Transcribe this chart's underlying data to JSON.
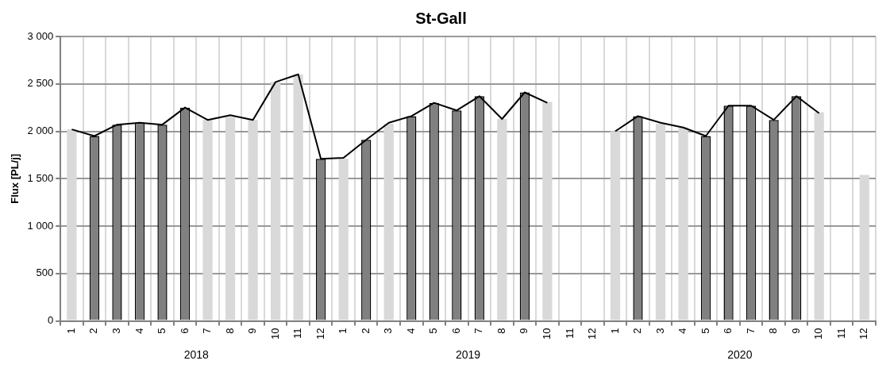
{
  "chart_data": {
    "type": "bar",
    "title": "St-Gall",
    "ylabel": "Flux [PL/j]",
    "categories": [
      "1",
      "2",
      "3",
      "4",
      "5",
      "6",
      "7",
      "8",
      "9",
      "10",
      "11",
      "12",
      "1",
      "2",
      "3",
      "4",
      "5",
      "6",
      "7",
      "8",
      "9",
      "10",
      "11",
      "12",
      "1",
      "2",
      "3",
      "4",
      "5",
      "6",
      "7",
      "8",
      "9",
      "10",
      "11",
      "12"
    ],
    "series": [
      {
        "color": "#d9d9d9",
        "values": [
          2020,
          null,
          null,
          null,
          null,
          null,
          2120,
          2150,
          2120,
          2520,
          2600,
          null,
          1710,
          null,
          2080,
          null,
          null,
          null,
          null,
          2130,
          null,
          2310,
          null,
          null,
          2000,
          null,
          2080,
          2040,
          null,
          null,
          null,
          null,
          null,
          2200,
          null,
          1540
        ]
      },
      {
        "color": "#808080",
        "values": [
          null,
          1950,
          2070,
          2090,
          2070,
          2250,
          null,
          null,
          null,
          null,
          null,
          1710,
          null,
          1910,
          null,
          2160,
          2300,
          2220,
          2370,
          null,
          2410,
          null,
          null,
          null,
          null,
          2160,
          null,
          null,
          1950,
          2270,
          2270,
          2120,
          2370,
          null,
          null,
          null
        ]
      },
      {
        "type": "line",
        "color": "#000000",
        "values": [
          2020,
          1950,
          2070,
          2090,
          2070,
          2250,
          2120,
          2170,
          2120,
          2520,
          2600,
          1710,
          1720,
          1910,
          2090,
          2160,
          2300,
          2220,
          2370,
          2130,
          2410,
          2300,
          null,
          null,
          2000,
          2160,
          2090,
          2040,
          1950,
          2270,
          2270,
          2120,
          2370,
          2190,
          null,
          null
        ]
      }
    ],
    "annotations": [
      "2018",
      "2019",
      "2020"
    ],
    "ylim": [
      0,
      3000
    ],
    "yticks": [
      0,
      500,
      {
        "value": 1000,
        "label": "1 000"
      },
      {
        "value": 1500,
        "label": "1 500"
      },
      {
        "value": 2000,
        "label": "2 000"
      },
      {
        "value": 2500,
        "label": "2 500"
      },
      {
        "value": 3000,
        "label": "3 000"
      }
    ],
    "grid": true,
    "legend": false,
    "marker": "none",
    "line_style": "solid"
  }
}
